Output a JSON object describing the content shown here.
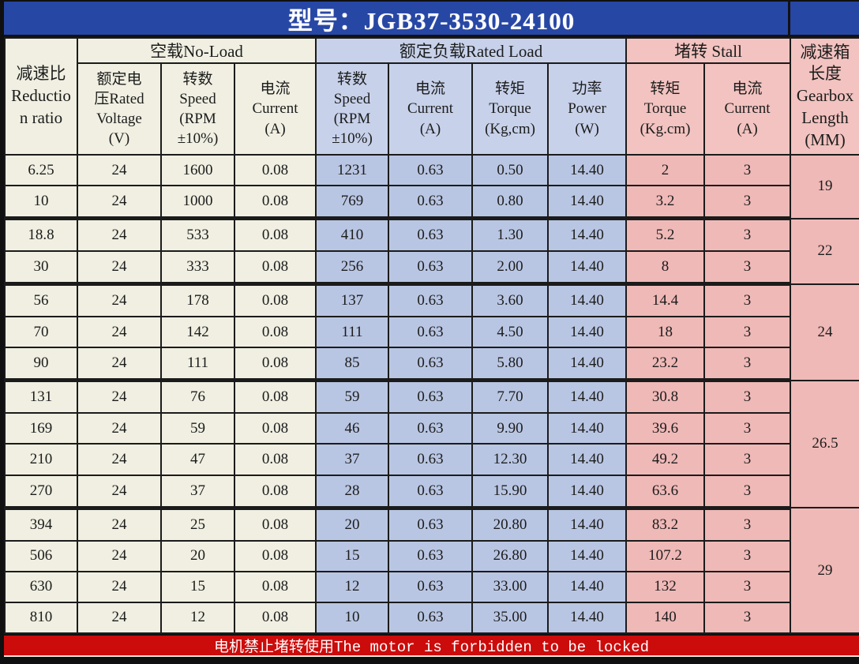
{
  "title": {
    "model_label": "型号：JGB37-3530-24100"
  },
  "colors": {
    "title_bar_blue": "#2747a5",
    "noload_beige": "#f0efe2",
    "rated_load_blue": "#b9c6e3",
    "rated_load_header_blue": "#c7d1ea",
    "stall_pink": "#efb9b7",
    "stall_header_pink": "#f2c3c0",
    "warning_red": "#cc0b0b",
    "border_black": "#1b1b1b",
    "text_black": "#1c1c1c"
  },
  "table": {
    "groups": {
      "no_load": "空载No-Load",
      "rated_load": "额定负载Rated Load",
      "stall": "堵转 Stall"
    },
    "headers": [
      "减速比\nReductio\nn ratio",
      "额定电\n压Rated\nVoltage\n(V)",
      "转数\nSpeed\n(RPM\n±10%)",
      "电流\nCurrent\n(A)",
      "转数\nSpeed\n(RPM\n±10%)",
      "电流\nCurrent\n(A)",
      "转矩\nTorque\n(Kg,cm)",
      "功率\nPower\n(W)",
      "转矩\nTorque\n(Kg.cm)",
      "电流\nCurrent\n(A)",
      "减速箱\n长度\nGearbox\nLength\n(MM)"
    ],
    "rows": [
      {
        "values": [
          "6.25",
          "24",
          "1600",
          "0.08",
          "1231",
          "0.63",
          "0.50",
          "14.40",
          "2",
          "3"
        ],
        "gearbox": {
          "value": "19",
          "span": 2
        },
        "group_end": false
      },
      {
        "values": [
          "10",
          "24",
          "1000",
          "0.08",
          "769",
          "0.63",
          "0.80",
          "14.40",
          "3.2",
          "3"
        ],
        "group_end": true
      },
      {
        "values": [
          "18.8",
          "24",
          "533",
          "0.08",
          "410",
          "0.63",
          "1.30",
          "14.40",
          "5.2",
          "3"
        ],
        "gearbox": {
          "value": "22",
          "span": 2
        },
        "group_end": false
      },
      {
        "values": [
          "30",
          "24",
          "333",
          "0.08",
          "256",
          "0.63",
          "2.00",
          "14.40",
          "8",
          "3"
        ],
        "group_end": true
      },
      {
        "values": [
          "56",
          "24",
          "178",
          "0.08",
          "137",
          "0.63",
          "3.60",
          "14.40",
          "14.4",
          "3"
        ],
        "gearbox": {
          "value": "24",
          "span": 3
        },
        "group_end": false
      },
      {
        "values": [
          "70",
          "24",
          "142",
          "0.08",
          "111",
          "0.63",
          "4.50",
          "14.40",
          "18",
          "3"
        ],
        "group_end": false
      },
      {
        "values": [
          "90",
          "24",
          "111",
          "0.08",
          "85",
          "0.63",
          "5.80",
          "14.40",
          "23.2",
          "3"
        ],
        "group_end": true
      },
      {
        "values": [
          "131",
          "24",
          "76",
          "0.08",
          "59",
          "0.63",
          "7.70",
          "14.40",
          "30.8",
          "3"
        ],
        "gearbox": {
          "value": "26.5",
          "span": 4
        },
        "group_end": false
      },
      {
        "values": [
          "169",
          "24",
          "59",
          "0.08",
          "46",
          "0.63",
          "9.90",
          "14.40",
          "39.6",
          "3"
        ],
        "group_end": false
      },
      {
        "values": [
          "210",
          "24",
          "47",
          "0.08",
          "37",
          "0.63",
          "12.30",
          "14.40",
          "49.2",
          "3"
        ],
        "group_end": false
      },
      {
        "values": [
          "270",
          "24",
          "37",
          "0.08",
          "28",
          "0.63",
          "15.90",
          "14.40",
          "63.6",
          "3"
        ],
        "group_end": true
      },
      {
        "values": [
          "394",
          "24",
          "25",
          "0.08",
          "20",
          "0.63",
          "20.80",
          "14.40",
          "83.2",
          "3"
        ],
        "gearbox": {
          "value": "29",
          "span": 4
        },
        "group_end": false
      },
      {
        "values": [
          "506",
          "24",
          "20",
          "0.08",
          "15",
          "0.63",
          "26.80",
          "14.40",
          "107.2",
          "3"
        ],
        "group_end": false
      },
      {
        "values": [
          "630",
          "24",
          "15",
          "0.08",
          "12",
          "0.63",
          "33.00",
          "14.40",
          "132",
          "3"
        ],
        "group_end": false
      },
      {
        "values": [
          "810",
          "24",
          "12",
          "0.08",
          "10",
          "0.63",
          "35.00",
          "14.40",
          "140",
          "3"
        ],
        "group_end": false
      }
    ]
  },
  "footer": {
    "warning": "电机禁止堵转使用The motor is forbidden to be locked"
  }
}
